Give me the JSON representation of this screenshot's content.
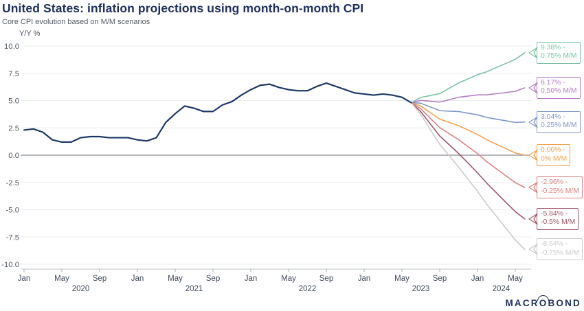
{
  "header": {
    "title": "United States: inflation projections using month-on-month CPI",
    "subtitle": "Core CPI evolution based on M/M scenarios"
  },
  "chart_data": {
    "type": "line",
    "title": "United States: inflation projections using month-on-month CPI",
    "subtitle": "Core CPI evolution based on M/M scenarios",
    "ylabel": "Y/Y %",
    "ylim": [
      -10,
      10
    ],
    "grid": "horizontal",
    "x_unit": "months, Jan 2020 = 0",
    "y_ticks": [
      {
        "v": 10.0,
        "t": "10.0"
      },
      {
        "v": 7.5,
        "t": "7.5"
      },
      {
        "v": 5.0,
        "t": "5.0"
      },
      {
        "v": 2.5,
        "t": "2.5"
      },
      {
        "v": 0.0,
        "t": "0.0"
      },
      {
        "v": -2.5,
        "t": "-2.5"
      },
      {
        "v": -5.0,
        "t": "-5.0"
      },
      {
        "v": -7.5,
        "t": "-7.5"
      },
      {
        "v": -10.0,
        "t": "-10.0"
      }
    ],
    "x_month_labels": [
      {
        "m": 0,
        "t": "Jan"
      },
      {
        "m": 4,
        "t": "May"
      },
      {
        "m": 8,
        "t": "Sep"
      },
      {
        "m": 12,
        "t": "Jan"
      },
      {
        "m": 16,
        "t": "May"
      },
      {
        "m": 20,
        "t": "Sep"
      },
      {
        "m": 24,
        "t": "Jan"
      },
      {
        "m": 28,
        "t": "May"
      },
      {
        "m": 32,
        "t": "Sep"
      },
      {
        "m": 36,
        "t": "Jan"
      },
      {
        "m": 40,
        "t": "May"
      },
      {
        "m": 44,
        "t": "Sep"
      },
      {
        "m": 48,
        "t": "Jan"
      },
      {
        "m": 52,
        "t": "May"
      }
    ],
    "x_year_labels": [
      {
        "m": 6,
        "t": "2020"
      },
      {
        "m": 18,
        "t": "2021"
      },
      {
        "m": 30,
        "t": "2022"
      },
      {
        "m": 42,
        "t": "2023"
      },
      {
        "m": 50.5,
        "t": "2024"
      }
    ],
    "historical": {
      "name": "Core CPI Y/Y actual",
      "color": "#1e3866",
      "start_month": 0,
      "values": [
        2.3,
        2.4,
        2.1,
        1.4,
        1.2,
        1.2,
        1.6,
        1.7,
        1.7,
        1.6,
        1.6,
        1.6,
        1.4,
        1.3,
        1.6,
        3.0,
        3.8,
        4.5,
        4.3,
        4.0,
        4.0,
        4.6,
        4.9,
        5.5,
        6.0,
        6.4,
        6.5,
        6.2,
        6.0,
        5.9,
        5.9,
        6.3,
        6.6,
        6.3,
        6.0,
        5.7,
        5.6,
        5.5,
        5.6,
        5.5,
        5.3,
        4.8
      ]
    },
    "projections": [
      {
        "name": "0.75% M/M scenario",
        "color": "#7cc2a4",
        "final": 9.38,
        "label_line1": "9.38% -",
        "label_line2": "0.75% M/M",
        "values": [
          5.29,
          5.46,
          5.64,
          6.12,
          6.61,
          6.99,
          7.37,
          7.65,
          8.03,
          8.4,
          8.78,
          9.38
        ]
      },
      {
        "name": "0.50% M/M scenario",
        "color": "#b67cc5",
        "final": 6.17,
        "label_line1": "6.17% -",
        "label_line2": "0.50% M/M",
        "values": [
          5.02,
          4.94,
          4.86,
          5.08,
          5.3,
          5.41,
          5.52,
          5.53,
          5.63,
          5.74,
          5.85,
          6.17
        ]
      },
      {
        "name": "0.25% M/M scenario",
        "color": "#8098c6",
        "final": 3.04,
        "label_line1": "3.04% -",
        "label_line2": "0.25% M/M",
        "values": [
          4.76,
          4.42,
          4.08,
          4.03,
          4.0,
          3.84,
          3.7,
          3.45,
          3.3,
          3.15,
          3.0,
          3.04
        ]
      },
      {
        "name": "0% M/M scenario",
        "color": "#f0a24f",
        "final": 0.0,
        "label_line1": "0.00% -",
        "label_line2": "0% M/M",
        "values": [
          4.5,
          3.9,
          3.3,
          3.0,
          2.7,
          2.3,
          1.9,
          1.4,
          1.0,
          0.6,
          0.2,
          0.0
        ]
      },
      {
        "name": "-0.25% M/M scenario",
        "color": "#dd8282",
        "final": -2.96,
        "label_line1": "-2.96% -",
        "label_line2": "-0.25% M/M",
        "values": [
          4.24,
          3.38,
          2.53,
          1.97,
          1.42,
          0.78,
          0.14,
          -0.61,
          -1.25,
          -1.89,
          -2.52,
          -2.96
        ]
      },
      {
        "name": "-0.5% M/M scenario",
        "color": "#a2576a",
        "final": -5.84,
        "label_line1": "-5.84% -",
        "label_line2": "-0.5% M/M",
        "values": [
          3.98,
          2.86,
          1.76,
          0.96,
          0.15,
          -0.73,
          -1.62,
          -2.58,
          -3.45,
          -4.32,
          -5.17,
          -5.84
        ]
      },
      {
        "name": "-0.75% M/M scenario",
        "color": "#cbcbcb",
        "final": -8.64,
        "label_line1": "-8.64% -",
        "label_line2": "-0.75% M/M",
        "values": [
          3.72,
          2.35,
          1.0,
          -0.05,
          -1.09,
          -2.21,
          -3.32,
          -4.51,
          -5.6,
          -6.69,
          -7.76,
          -8.64
        ]
      }
    ]
  },
  "branding": {
    "part1": "MACR",
    "o": "O",
    "part2": "BOND"
  }
}
